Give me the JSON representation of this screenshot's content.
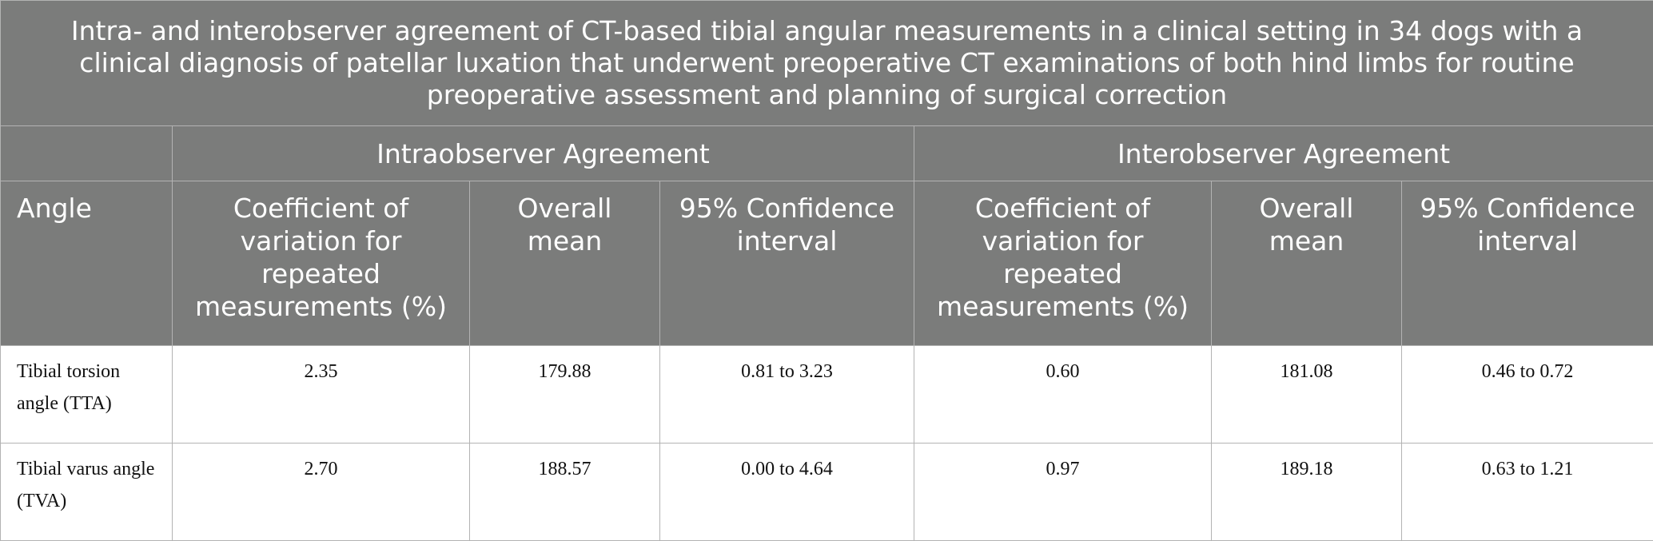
{
  "caption": "Intra- and interobserver agreement of CT-based tibial angular measurements in a clinical setting in 34 dogs with a clinical diagnosis of patellar luxation that underwent preoperative CT examinations of both hind limbs for routine preoperative assessment and planning of surgical correction",
  "groups": {
    "intra": "Intraobserver Agreement",
    "inter": "Interobserver Agreement"
  },
  "columns": {
    "angle": "Angle",
    "intra_cv": "Coefficient of variation for repeated measurements (%)",
    "intra_mean": "Overall mean",
    "intra_ci": "95% Confidence interval",
    "inter_cv": "Coefficient of variation for repeated measurements (%)",
    "inter_mean": "Overall mean",
    "inter_ci": "95% Confidence interval"
  },
  "rows": [
    {
      "angle": "Tibial torsion angle (TTA)",
      "intra_cv": "2.35",
      "intra_mean": "179.88",
      "intra_ci": "0.81 to 3.23",
      "inter_cv": "0.60",
      "inter_mean": "181.08",
      "inter_ci": "0.46 to 0.72"
    },
    {
      "angle": "Tibial varus angle (TVA)",
      "intra_cv": "2.70",
      "intra_mean": "188.57",
      "intra_ci": "0.00 to 4.64",
      "inter_cv": "0.97",
      "inter_mean": "189.18",
      "inter_ci": "0.63 to 1.21"
    }
  ]
}
